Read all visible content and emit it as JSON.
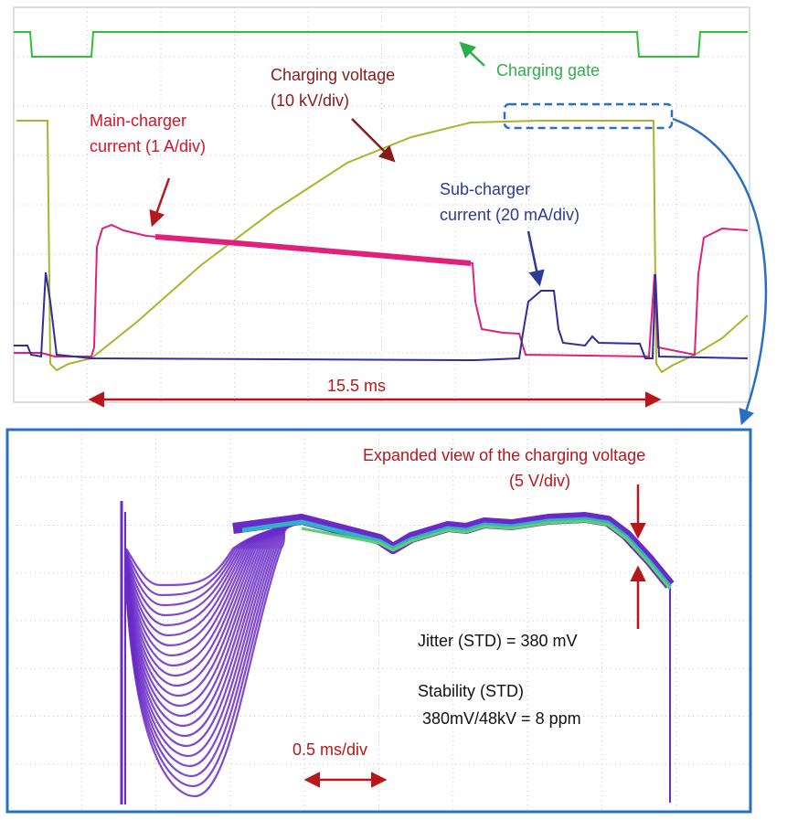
{
  "top_panel": {
    "charging_gate_label": "Charging gate",
    "charging_voltage_label_line1": "Charging voltage",
    "charging_voltage_label_line2": "(10 kV/div)",
    "main_charger_label_line1": "Main-charger",
    "main_charger_label_line2": "current (1 A/div)",
    "sub_charger_label_line1": "Sub-charger",
    "sub_charger_label_line2": "current (20 mA/div)",
    "duration_label": "15.5 ms"
  },
  "bottom_panel": {
    "expanded_label_line1": "Expanded view of the charging voltage",
    "expanded_label_line2": "(5 V/div)",
    "jitter_label": "Jitter (STD) = 380 mV",
    "stability_label_line1": "Stability (STD)",
    "stability_label_line2": "380mV/48kV = 8 ppm",
    "timebase_label": "0.5 ms/div"
  },
  "colors": {
    "gate": "#2fbf3a",
    "voltage": "#a9b52a",
    "main_current": "#e0207a",
    "sub_current": "#2e2e9a",
    "annotation_red": "#b8161a",
    "annotation_green": "#2fae4e",
    "annotation_blue": "#2a3a9a",
    "panel_border": "#2a6fc0",
    "grid": "#c9c9c9",
    "overlay_purple": "#6a2ac8",
    "overlay_teal": "#32b0c8",
    "overlay_green": "#5fd06a"
  }
}
